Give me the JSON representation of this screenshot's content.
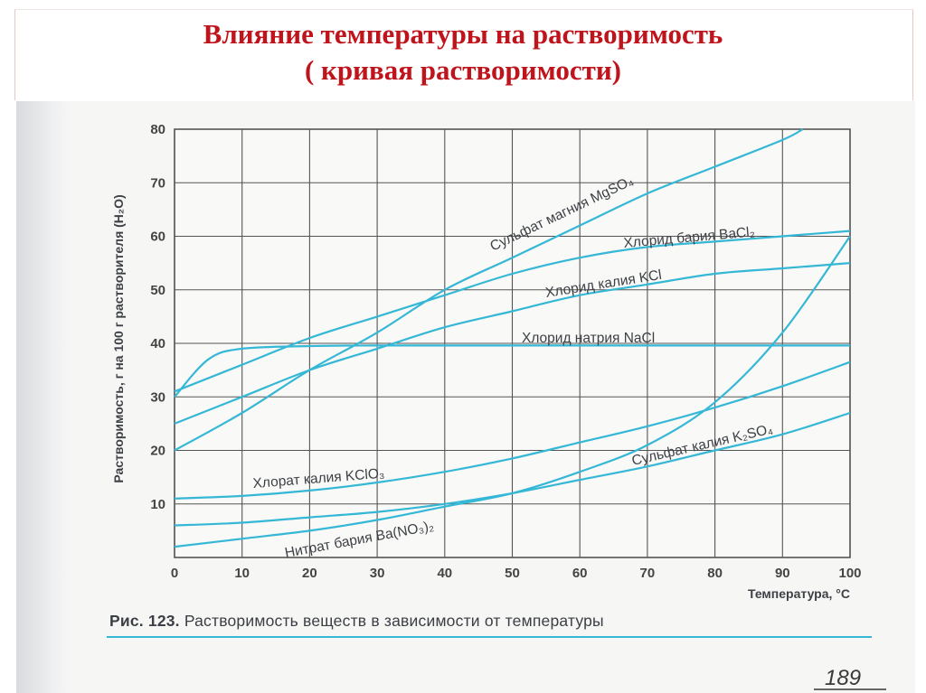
{
  "slide": {
    "title_line1": "Влияние температуры на растворимость",
    "title_line2": "( кривая растворимости)"
  },
  "figure": {
    "caption_prefix": "Рис. 123.",
    "caption_text": "Растворимость веществ в зависимости от температуры",
    "page_number": "189"
  },
  "colors": {
    "title": "#c0141c",
    "curve": "#35b7d6",
    "grid": "#555555",
    "background": "#f6f6f4"
  },
  "chart_data": {
    "type": "line",
    "xlabel": "Температура, °C",
    "ylabel": "Растворимость, г на 100 г растворителя (H₂O)",
    "xlim": [
      0,
      100
    ],
    "ylim": [
      0,
      80
    ],
    "xticks": [
      0,
      10,
      20,
      30,
      40,
      50,
      60,
      70,
      80,
      90,
      100
    ],
    "yticks": [
      10,
      20,
      30,
      40,
      50,
      60,
      70,
      80
    ],
    "grid": true,
    "series": [
      {
        "name": "Сульфат магния MgSO₄",
        "x": [
          0,
          10,
          20,
          30,
          40,
          50,
          60,
          70,
          80,
          90,
          93
        ],
        "y": [
          20,
          27,
          35,
          42,
          50,
          56,
          62,
          68,
          73,
          78,
          80
        ]
      },
      {
        "name": "Хлорид бария BaCl₂",
        "x": [
          0,
          10,
          20,
          30,
          40,
          50,
          60,
          70,
          80,
          90,
          100
        ],
        "y": [
          31,
          36,
          41,
          45,
          49,
          53,
          56,
          58,
          59,
          60,
          61
        ]
      },
      {
        "name": "Хлорид калия KCl",
        "x": [
          0,
          10,
          20,
          30,
          40,
          50,
          60,
          70,
          80,
          90,
          100
        ],
        "y": [
          25,
          30,
          35,
          39,
          43,
          46,
          49,
          51,
          53,
          54,
          55
        ]
      },
      {
        "name": "Хлорид натрия NaCl",
        "x": [
          0,
          5,
          10,
          20,
          30,
          40,
          50,
          60,
          70,
          80,
          90,
          100
        ],
        "y": [
          30,
          37,
          39,
          39.5,
          39.6,
          39.6,
          39.6,
          39.6,
          39.6,
          39.6,
          39.6,
          39.6
        ]
      },
      {
        "name": "Хлорат калия KClO₃",
        "x": [
          0,
          10,
          20,
          30,
          40,
          50,
          60,
          70,
          80,
          90,
          100
        ],
        "y": [
          11,
          11.5,
          12.5,
          14,
          16,
          18.5,
          21.5,
          24.5,
          28,
          32,
          36.5
        ]
      },
      {
        "name": "Сульфат калия K₂SO₄",
        "x": [
          0,
          10,
          20,
          30,
          40,
          50,
          60,
          70,
          80,
          90,
          100
        ],
        "y": [
          6,
          6.5,
          7.5,
          8.5,
          10,
          12,
          14.5,
          17,
          20,
          23,
          27
        ]
      },
      {
        "name": "Нитрат бария Ba(NO₃)₂",
        "x": [
          0,
          10,
          20,
          30,
          40,
          50,
          60,
          70,
          80,
          90,
          100
        ],
        "y": [
          2,
          3.5,
          5,
          7,
          9.5,
          12,
          16,
          21,
          29,
          42,
          60
        ]
      }
    ]
  }
}
